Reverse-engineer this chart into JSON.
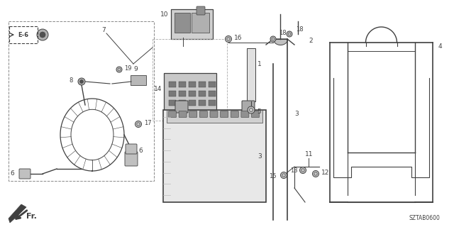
{
  "bg_color": "#ffffff",
  "lc": "#404040",
  "fig_width": 6.4,
  "fig_height": 3.2,
  "dpi": 100,
  "diagram_code": "SZTAB0600",
  "fr_label": "Fr.",
  "label_E6": "E-6"
}
